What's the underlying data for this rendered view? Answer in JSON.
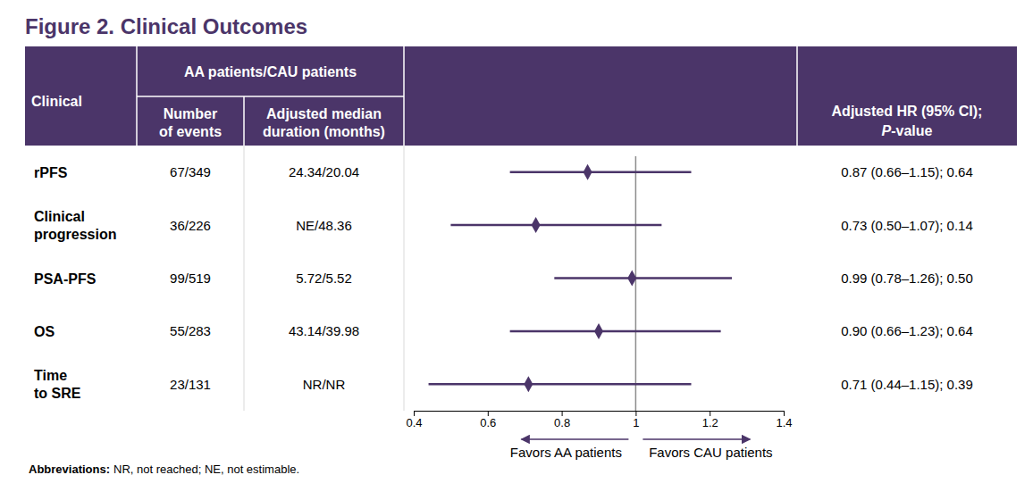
{
  "chart_data": {
    "type": "forest",
    "title": "Figure 2. Clinical Outcomes",
    "color": "#4b3569",
    "columns": {
      "label": "Clinical",
      "group": "AA patients/CAU patients",
      "events": "Number of events",
      "median": "Adjusted median duration (months)",
      "hr": "Adjusted HR (95% CI);",
      "hr_p": "P-value"
    },
    "categories": [
      "rPFS",
      "Clinical progression",
      "PSA-PFS",
      "OS",
      "Time to SRE"
    ],
    "events": [
      "67/349",
      "36/226",
      "99/519",
      "55/283",
      "23/131"
    ],
    "medians": [
      "24.34/20.04",
      "NE/48.36",
      "5.72/5.52",
      "43.14/39.98",
      "NR/NR"
    ],
    "values": [
      0.87,
      0.73,
      0.99,
      0.9,
      0.71
    ],
    "ci_lower": [
      0.66,
      0.5,
      0.78,
      0.66,
      0.44
    ],
    "ci_upper": [
      1.15,
      1.07,
      1.26,
      1.23,
      1.15
    ],
    "value_labels": [
      "0.87 (0.66–1.15); 0.64",
      "0.73 (0.50–1.07); 0.14",
      "0.99 (0.78–1.26); 0.50",
      "0.90 (0.66–1.23); 0.64",
      "0.71 (0.44–1.15); 0.39"
    ],
    "data_labels": true,
    "xlim": [
      0.4,
      1.4
    ],
    "xticks": [
      0.4,
      0.6,
      0.8,
      1,
      1.2,
      1.4
    ],
    "reference": 1,
    "annotations": [
      "Favors AA patients",
      "Favors CAU patients"
    ],
    "footnote_label": "Abbreviations:",
    "footnote": "NR, not reached; NE, not estimable."
  }
}
